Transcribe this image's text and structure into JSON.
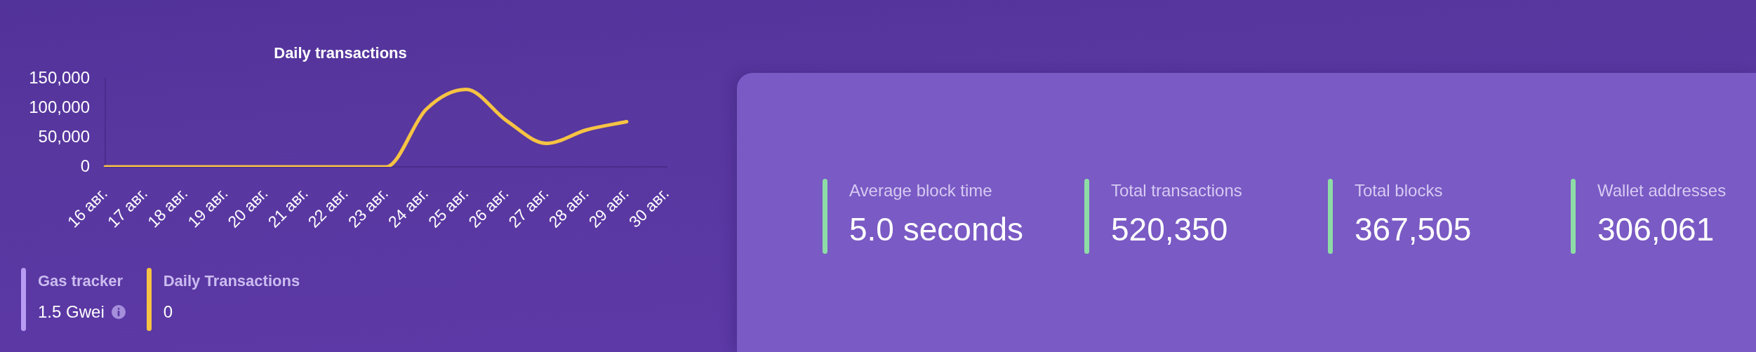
{
  "chart_data": [
    {
      "type": "line",
      "title": "Daily transactions",
      "categories": [
        "16 авг.",
        "17 авг.",
        "18 авг.",
        "19 авг.",
        "20 авг.",
        "21 авг.",
        "22 авг.",
        "23 авг.",
        "24 авг.",
        "25 авг.",
        "26 авг.",
        "27 авг.",
        "28 авг.",
        "29 авг.",
        "30 авг."
      ],
      "values": [
        0,
        0,
        0,
        0,
        0,
        0,
        0,
        0,
        98000,
        132000,
        79000,
        40000,
        63000,
        77000,
        null
      ],
      "color": "#f6c343",
      "ylim": [
        0,
        150000
      ],
      "yticks": [
        0,
        {
          "value": 50000,
          "label": "50,000"
        },
        {
          "value": 100000,
          "label": "100,000"
        },
        {
          "value": 150000,
          "label": "150,000"
        }
      ],
      "grid": false,
      "legend": false,
      "marker": "none",
      "line_style": "solid"
    },
    {
      "type": "other",
      "categories": [
        "Gas tracker",
        "Daily Transactions"
      ],
      "value_labels": [
        "1.5 Gwei",
        "0"
      ]
    },
    {
      "type": "other",
      "categories": [
        "Average block time",
        "Total transactions",
        "Total blocks",
        "Wallet addresses"
      ],
      "value_labels": [
        "5.0 seconds",
        "520,350",
        "367,505",
        "306,061"
      ]
    }
  ]
}
